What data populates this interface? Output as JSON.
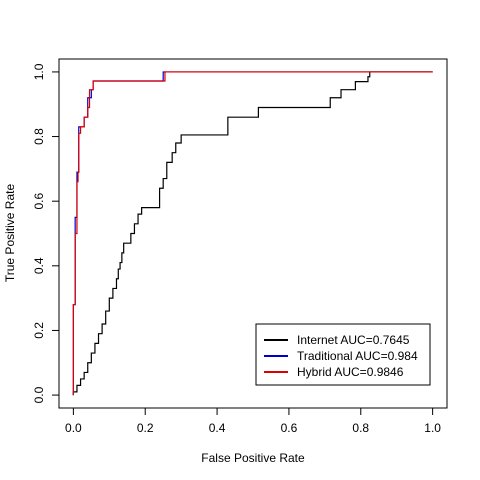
{
  "chart_data": {
    "type": "line",
    "xlabel": "False Positive Rate",
    "ylabel": "True Positive Rate",
    "xlim": [
      -0.04,
      1.04
    ],
    "ylim": [
      -0.04,
      1.04
    ],
    "x_ticks": [
      "0.0",
      "0.2",
      "0.4",
      "0.6",
      "0.8",
      "1.0"
    ],
    "y_ticks": [
      "0.0",
      "0.2",
      "0.4",
      "0.6",
      "0.8",
      "1.0"
    ],
    "grid": false,
    "legend_position": "bottom-right",
    "series": [
      {
        "name": "Internet AUC=0.7645",
        "color": "#000000",
        "points": [
          [
            0.0,
            0.0
          ],
          [
            0.0,
            0.01
          ],
          [
            0.01,
            0.01
          ],
          [
            0.01,
            0.03
          ],
          [
            0.02,
            0.03
          ],
          [
            0.02,
            0.05
          ],
          [
            0.03,
            0.05
          ],
          [
            0.03,
            0.07
          ],
          [
            0.04,
            0.07
          ],
          [
            0.04,
            0.1
          ],
          [
            0.05,
            0.1
          ],
          [
            0.05,
            0.13
          ],
          [
            0.06,
            0.13
          ],
          [
            0.06,
            0.16
          ],
          [
            0.07,
            0.16
          ],
          [
            0.07,
            0.19
          ],
          [
            0.08,
            0.19
          ],
          [
            0.08,
            0.22
          ],
          [
            0.09,
            0.22
          ],
          [
            0.09,
            0.26
          ],
          [
            0.1,
            0.26
          ],
          [
            0.1,
            0.3
          ],
          [
            0.11,
            0.3
          ],
          [
            0.11,
            0.33
          ],
          [
            0.12,
            0.33
          ],
          [
            0.12,
            0.36
          ],
          [
            0.125,
            0.36
          ],
          [
            0.125,
            0.39
          ],
          [
            0.13,
            0.39
          ],
          [
            0.13,
            0.41
          ],
          [
            0.135,
            0.41
          ],
          [
            0.135,
            0.44
          ],
          [
            0.14,
            0.44
          ],
          [
            0.14,
            0.47
          ],
          [
            0.16,
            0.47
          ],
          [
            0.16,
            0.5
          ],
          [
            0.17,
            0.5
          ],
          [
            0.17,
            0.53
          ],
          [
            0.18,
            0.53
          ],
          [
            0.18,
            0.56
          ],
          [
            0.19,
            0.56
          ],
          [
            0.19,
            0.58
          ],
          [
            0.24,
            0.58
          ],
          [
            0.24,
            0.64
          ],
          [
            0.25,
            0.64
          ],
          [
            0.25,
            0.67
          ],
          [
            0.26,
            0.67
          ],
          [
            0.26,
            0.72
          ],
          [
            0.275,
            0.72
          ],
          [
            0.275,
            0.75
          ],
          [
            0.285,
            0.75
          ],
          [
            0.285,
            0.78
          ],
          [
            0.3,
            0.78
          ],
          [
            0.3,
            0.805
          ],
          [
            0.43,
            0.805
          ],
          [
            0.43,
            0.86
          ],
          [
            0.515,
            0.86
          ],
          [
            0.515,
            0.89
          ],
          [
            0.715,
            0.89
          ],
          [
            0.715,
            0.92
          ],
          [
            0.745,
            0.92
          ],
          [
            0.745,
            0.945
          ],
          [
            0.785,
            0.945
          ],
          [
            0.785,
            0.97
          ],
          [
            0.82,
            0.97
          ],
          [
            0.82,
            0.985
          ],
          [
            0.825,
            0.985
          ],
          [
            0.825,
            1.0
          ],
          [
            1.0,
            1.0
          ]
        ]
      },
      {
        "name": "Traditional AUC=0.984",
        "color": "#0000cc",
        "points": [
          [
            0.0,
            0.0
          ],
          [
            0.0,
            0.28
          ],
          [
            0.005,
            0.28
          ],
          [
            0.005,
            0.55
          ],
          [
            0.01,
            0.55
          ],
          [
            0.01,
            0.69
          ],
          [
            0.015,
            0.69
          ],
          [
            0.015,
            0.83
          ],
          [
            0.03,
            0.83
          ],
          [
            0.03,
            0.86
          ],
          [
            0.04,
            0.86
          ],
          [
            0.04,
            0.92
          ],
          [
            0.05,
            0.92
          ],
          [
            0.05,
            0.945
          ],
          [
            0.055,
            0.945
          ],
          [
            0.055,
            0.972
          ],
          [
            0.25,
            0.972
          ],
          [
            0.25,
            1.0
          ],
          [
            1.0,
            1.0
          ]
        ]
      },
      {
        "name": "Hybrid AUC=0.9846",
        "color": "#dd0000",
        "points": [
          [
            0.0,
            0.0
          ],
          [
            0.0,
            0.28
          ],
          [
            0.005,
            0.28
          ],
          [
            0.005,
            0.5
          ],
          [
            0.01,
            0.5
          ],
          [
            0.01,
            0.66
          ],
          [
            0.013,
            0.66
          ],
          [
            0.013,
            0.69
          ],
          [
            0.015,
            0.69
          ],
          [
            0.015,
            0.81
          ],
          [
            0.02,
            0.81
          ],
          [
            0.02,
            0.83
          ],
          [
            0.03,
            0.83
          ],
          [
            0.03,
            0.86
          ],
          [
            0.04,
            0.86
          ],
          [
            0.04,
            0.89
          ],
          [
            0.045,
            0.89
          ],
          [
            0.045,
            0.945
          ],
          [
            0.055,
            0.945
          ],
          [
            0.055,
            0.972
          ],
          [
            0.255,
            0.972
          ],
          [
            0.255,
            1.0
          ],
          [
            1.0,
            1.0
          ]
        ]
      }
    ]
  }
}
